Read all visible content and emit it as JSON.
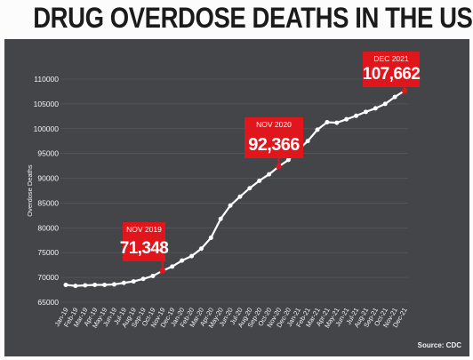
{
  "chart_data": {
    "type": "line",
    "title": "DRUG OVERDOSE DEATHS IN THE US",
    "xlabel": "",
    "ylabel": "Overdose Deaths",
    "source": "Source: CDC",
    "ylim": [
      65000,
      110000
    ],
    "yticks": [
      65000,
      70000,
      75000,
      80000,
      85000,
      90000,
      95000,
      100000,
      105000,
      110000
    ],
    "grid": true,
    "categories": [
      "Jan-19",
      "Feb-19",
      "Mar-19",
      "Apr-19",
      "May-19",
      "Jun-19",
      "Jul-19",
      "Aug-19",
      "Sep-19",
      "Oct-19",
      "Nov-19",
      "Dec-19",
      "Jan-20",
      "Feb-20",
      "Mar-20",
      "Apr-20",
      "May-20",
      "Jun-20",
      "Jul-20",
      "Aug-20",
      "Sep-20",
      "Oct-20",
      "Nov-20",
      "Dec-20",
      "Jan-21",
      "Feb-21",
      "Mar-21",
      "Apr-21",
      "May-21",
      "Jun-21",
      "Jul-21",
      "Aug-21",
      "Sep-21",
      "Oct-21",
      "Nov-21",
      "Dec-21"
    ],
    "series": [
      {
        "name": "",
        "values": [
          68500,
          68300,
          68400,
          68500,
          68500,
          68600,
          68900,
          69200,
          69700,
          70300,
          71348,
          72200,
          73400,
          74300,
          75800,
          78000,
          81800,
          84500,
          86300,
          88000,
          89500,
          90800,
          92366,
          93700,
          95700,
          97500,
          99800,
          101300,
          101200,
          101900,
          102600,
          103400,
          104100,
          105000,
          106400,
          107662
        ],
        "color": "#ffffff"
      }
    ],
    "annotations": [
      {
        "index": 10,
        "date": "NOV 2019",
        "value": "71,348"
      },
      {
        "index": 22,
        "date": "NOV 2020",
        "value": "92,366"
      },
      {
        "index": 35,
        "date": "DEC 2021",
        "value": "107,662"
      }
    ],
    "colors": {
      "background": "#444549",
      "page": "#fcfcfc",
      "line": "#ffffff",
      "callout": "#e1161c",
      "grid": "#5b5c61",
      "ticks": "#f2f2f2"
    }
  }
}
